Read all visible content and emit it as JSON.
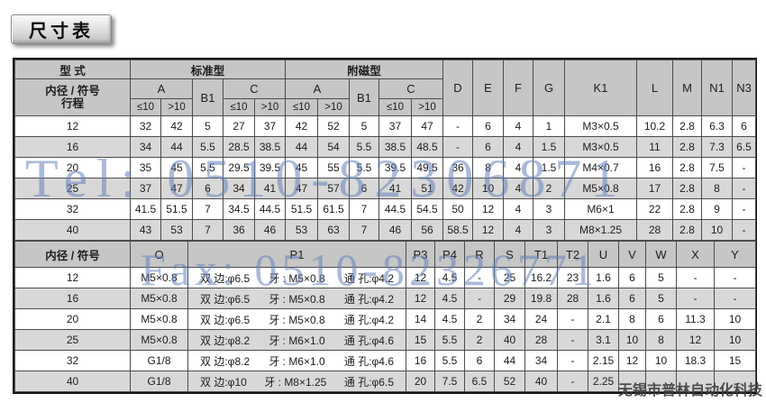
{
  "title": "尺寸表",
  "watermarks": {
    "tel": "Tel: 0510-82306871",
    "fax": "Fax: 0510-82326771",
    "company": "无锡市普林自动化科技"
  },
  "table1": {
    "header": {
      "type_label": "型 式",
      "bore_label": "内径 / 符号",
      "stroke_label": "行程",
      "standard_label": "标准型",
      "magnetic_label": "附磁型",
      "col_a": "A",
      "col_b1": "B1",
      "col_c": "C",
      "le10": "≤10",
      "gt10": ">10",
      "tail_cols": [
        "D",
        "E",
        "F",
        "G",
        "K1",
        "L",
        "M",
        "N1",
        "N3"
      ]
    },
    "rows": [
      {
        "bore": "12",
        "std": [
          "32",
          "42",
          "5",
          "27",
          "37"
        ],
        "mag": [
          "42",
          "52",
          "5",
          "37",
          "47"
        ],
        "tail": [
          "-",
          "6",
          "4",
          "1",
          "M3×0.5",
          "10.2",
          "2.8",
          "6.3",
          "6"
        ]
      },
      {
        "bore": "16",
        "std": [
          "34",
          "44",
          "5.5",
          "28.5",
          "38.5"
        ],
        "mag": [
          "44",
          "54",
          "5.5",
          "38.5",
          "48.5"
        ],
        "tail": [
          "-",
          "6",
          "4",
          "1.5",
          "M3×0.5",
          "11",
          "2.8",
          "7.3",
          "6.5"
        ]
      },
      {
        "bore": "20",
        "std": [
          "35",
          "45",
          "5.5",
          "29.5",
          "39.5"
        ],
        "mag": [
          "45",
          "55",
          "5.5",
          "39.5",
          "49.5"
        ],
        "tail": [
          "36",
          "8",
          "4",
          "1.5",
          "M4×0.7",
          "16",
          "2.8",
          "7.5",
          "-"
        ]
      },
      {
        "bore": "25",
        "std": [
          "37",
          "47",
          "6",
          "34",
          "41"
        ],
        "mag": [
          "47",
          "57",
          "6",
          "41",
          "51"
        ],
        "tail": [
          "42",
          "10",
          "4",
          "2",
          "M5×0.8",
          "17",
          "2.8",
          "8",
          "-"
        ]
      },
      {
        "bore": "32",
        "std": [
          "41.5",
          "51.5",
          "7",
          "34.5",
          "44.5"
        ],
        "mag": [
          "51.5",
          "61.5",
          "7",
          "44.5",
          "54.5"
        ],
        "tail": [
          "50",
          "12",
          "4",
          "3",
          "M6×1",
          "22",
          "2.8",
          "9",
          "-"
        ]
      },
      {
        "bore": "40",
        "std": [
          "43",
          "53",
          "7",
          "36",
          "46"
        ],
        "mag": [
          "53",
          "63",
          "7",
          "46",
          "56"
        ],
        "tail": [
          "58.5",
          "12",
          "4",
          "3",
          "M8×1.25",
          "28",
          "2.8",
          "10",
          "-"
        ]
      }
    ]
  },
  "table2": {
    "header": {
      "bore_label": "内径 / 符号",
      "cols": [
        "O",
        "P1",
        "P3",
        "P4",
        "R",
        "S",
        "T1",
        "T2",
        "U",
        "V",
        "W",
        "X",
        "Y"
      ]
    },
    "rows": [
      {
        "bore": "12",
        "o": "M5×0.8",
        "p1": {
          "side": "双 边:φ6.5",
          "thread": "牙 : M5×0.8",
          "through": "通 孔:φ4.2"
        },
        "vals": [
          "12",
          "4.5",
          "-",
          "25",
          "16.2",
          "23",
          "1.6",
          "6",
          "5",
          "-",
          "-"
        ]
      },
      {
        "bore": "16",
        "o": "M5×0.8",
        "p1": {
          "side": "双 边:φ6.5",
          "thread": "牙 : M5×0.8",
          "through": "通 孔:φ4.2"
        },
        "vals": [
          "12",
          "4.5",
          "-",
          "29",
          "19.8",
          "28",
          "1.6",
          "6",
          "5",
          "-",
          "-"
        ]
      },
      {
        "bore": "20",
        "o": "M5×0.8",
        "p1": {
          "side": "双 边:φ6.5",
          "thread": "牙 : M5×0.8",
          "through": "通 孔:φ4.2"
        },
        "vals": [
          "14",
          "4.5",
          "2",
          "34",
          "24",
          "-",
          "2.1",
          "8",
          "6",
          "11.3",
          "10"
        ]
      },
      {
        "bore": "25",
        "o": "M5×0.8",
        "p1": {
          "side": "双 边:φ8.2",
          "thread": "牙 : M6×1.0",
          "through": "通 孔:φ4.6"
        },
        "vals": [
          "15",
          "5.5",
          "2",
          "40",
          "28",
          "-",
          "3.1",
          "10",
          "8",
          "12",
          "10"
        ]
      },
      {
        "bore": "32",
        "o": "G1/8",
        "p1": {
          "side": "双 边:φ8.2",
          "thread": "牙 : M6×1.0",
          "through": "通 孔:φ4.6"
        },
        "vals": [
          "16",
          "5.5",
          "6",
          "44",
          "34",
          "-",
          "2.15",
          "12",
          "10",
          "18.3",
          "15"
        ]
      },
      {
        "bore": "40",
        "o": "G1/8",
        "p1": {
          "side": "双 边:φ10",
          "thread": "牙 : M8×1.25",
          "through": "通 孔:φ6.5"
        },
        "vals": [
          "20",
          "7.5",
          "6.5",
          "52",
          "40",
          "-",
          "2.25",
          "",
          "",
          "",
          ""
        ]
      }
    ]
  }
}
